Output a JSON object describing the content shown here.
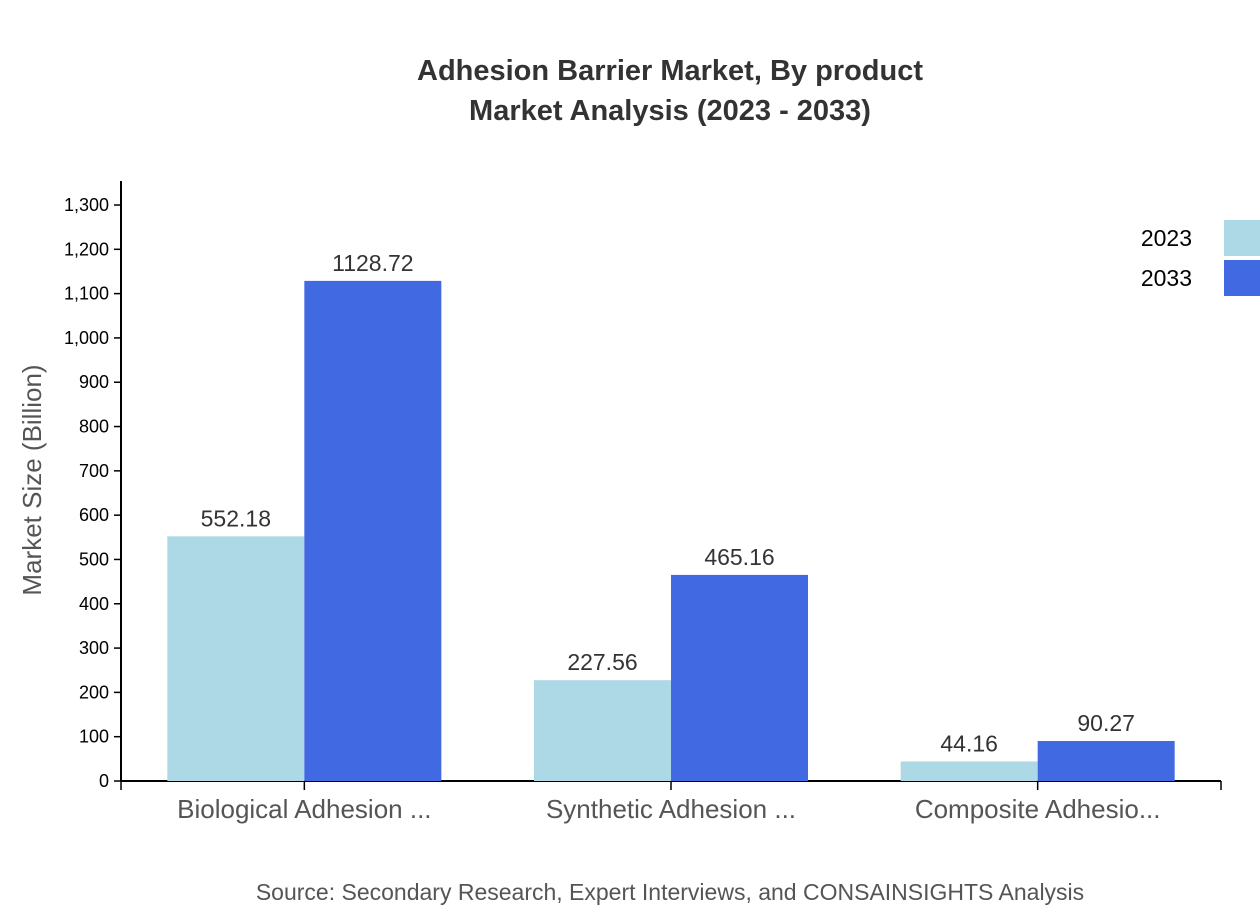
{
  "chart_data": {
    "type": "bar",
    "title": "Adhesion Barrier Market, By product",
    "subtitle": "Market Analysis (2023 - 2033)",
    "ylabel": "Market Size (Billion)",
    "xlabel": "",
    "categories": [
      "Biological Adhesion ...",
      "Synthetic Adhesion ...",
      "Composite Adhesio..."
    ],
    "series": [
      {
        "name": "2023",
        "color": "#add8e6",
        "values": [
          552.18,
          227.56,
          44.16
        ],
        "labels": [
          "552.18",
          "227.56",
          "44.16"
        ]
      },
      {
        "name": "2033",
        "color": "#4169e1",
        "values": [
          1128.72,
          465.16,
          90.27
        ],
        "labels": [
          "1128.72",
          "465.16",
          "90.27"
        ]
      }
    ],
    "ylim": [
      0,
      1350
    ],
    "yticks": [
      0,
      100,
      200,
      300,
      400,
      500,
      600,
      700,
      800,
      900,
      1000,
      1100,
      1200,
      1300
    ],
    "ytick_labels": [
      "0",
      "100",
      "200",
      "300",
      "400",
      "500",
      "600",
      "700",
      "800",
      "900",
      "1,000",
      "1,100",
      "1,200",
      "1,300"
    ],
    "grid": false,
    "legend": "top-right"
  },
  "source": "Source: Secondary Research, Expert Interviews, and CONSAINSIGHTS Analysis"
}
